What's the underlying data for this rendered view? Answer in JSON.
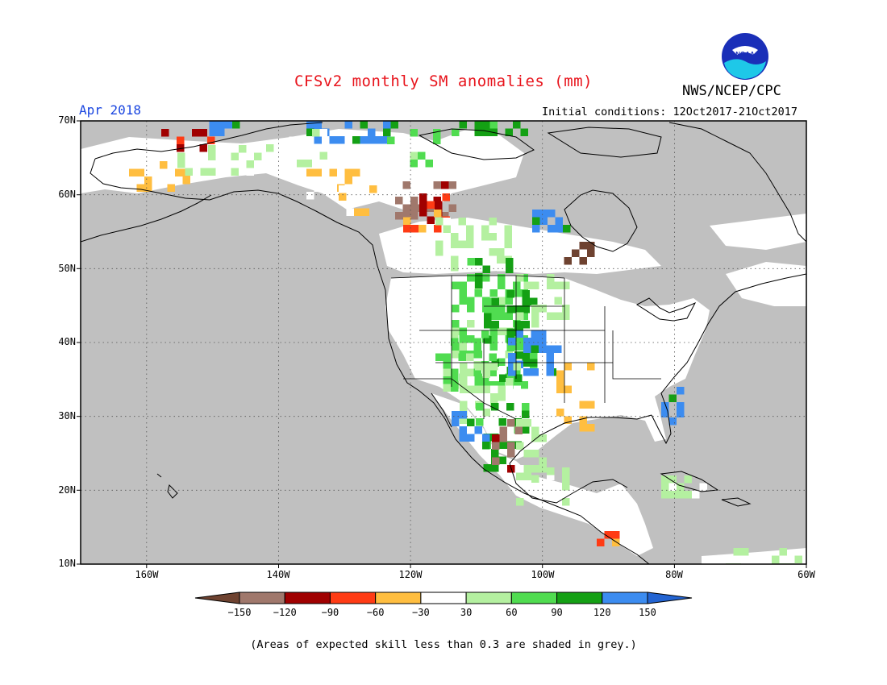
{
  "title": "CFSv2 monthly SM anomalies (mm)",
  "agency": "NWS/NCEP/CPC",
  "logo_text": "NOAA",
  "period": "Apr 2018",
  "initial_conditions": "Initial conditions: 12Oct2017-21Oct2017",
  "footnote": "(Areas of expected skill less than 0.3 are shaded in grey.)",
  "map": {
    "extent": {
      "lon_min": -170,
      "lon_max": -60,
      "lat_min": 10,
      "lat_max": 70
    },
    "lat_labels": [
      "70N",
      "60N",
      "50N",
      "40N",
      "30N",
      "20N",
      "10N"
    ],
    "lon_labels": [
      "160W",
      "140W",
      "120W",
      "100W",
      "80W",
      "60W"
    ],
    "colors": {
      "low_skill": "#c0c0c0",
      "ocean": "#c0c0c0",
      "land_near_normal": "#ffffff",
      "coastline": "#000000"
    }
  },
  "colorbar": {
    "tick_labels": [
      "-150",
      "-120",
      "-90",
      "-60",
      "-30",
      "30",
      "60",
      "90",
      "120",
      "150"
    ],
    "colors": [
      "#6e4230",
      "#a0786c",
      "#a00000",
      "#ff3b14",
      "#ffbe40",
      "#ffffff",
      "#b4f0a0",
      "#50dc50",
      "#14a014",
      "#3c8cf0",
      "#2364d2"
    ]
  }
}
